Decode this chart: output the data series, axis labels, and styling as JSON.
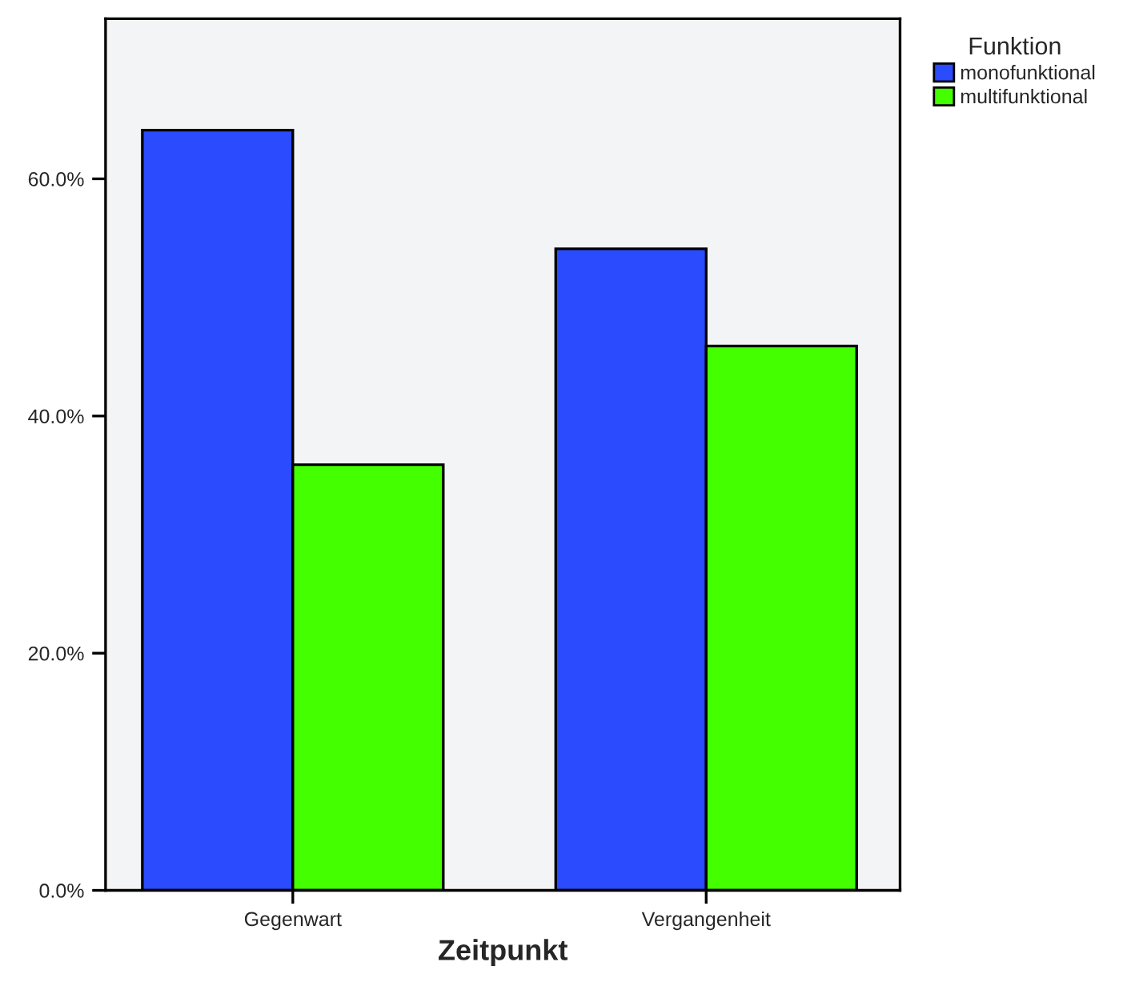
{
  "chart_data": {
    "type": "bar",
    "xlabel": "Zeitpunkt",
    "legend_title": "Funktion",
    "categories": [
      "Gegenwart",
      "Vergangenheit"
    ],
    "series": [
      {
        "name": "monofunktional",
        "color": "#2b4bff",
        "values": [
          64.1,
          54.1
        ]
      },
      {
        "name": "multifunktional",
        "color": "#44ff00",
        "values": [
          35.9,
          45.9
        ]
      }
    ],
    "ylim": [
      0,
      73.5
    ],
    "yticks": [
      {
        "value": 0,
        "label": "0.0%"
      },
      {
        "value": 20,
        "label": "20.0%"
      },
      {
        "value": 40,
        "label": "40.0%"
      },
      {
        "value": 60,
        "label": "60.0%"
      }
    ],
    "grid": false,
    "legend": "top right"
  }
}
